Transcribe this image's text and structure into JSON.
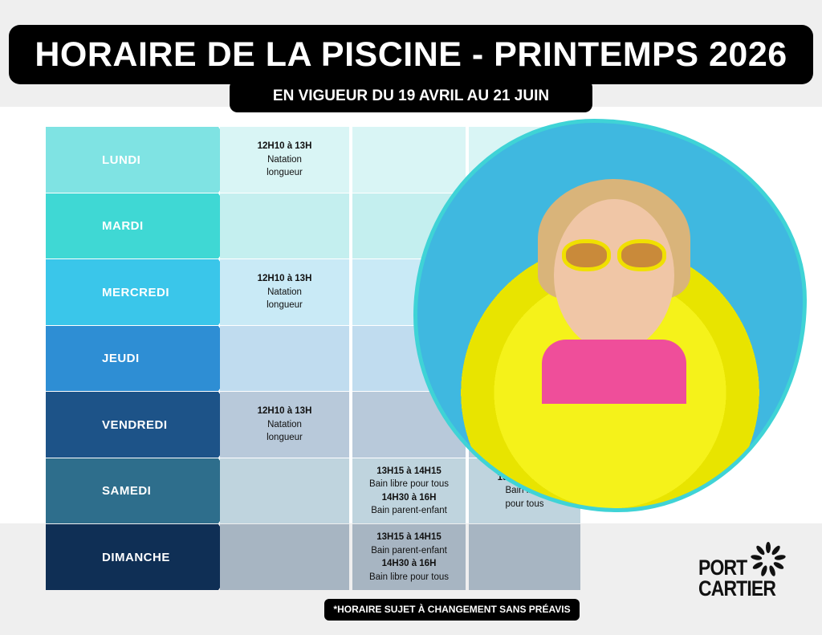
{
  "header": {
    "title": "HORAIRE DE LA PISCINE - PRINTEMPS 2026",
    "subtitle": "EN VIGUEUR DU 19 AVRIL AU 21 JUIN"
  },
  "schedule": [
    {
      "day": "LUNDI",
      "color": "#7fe3e3",
      "cell": "#d9f5f5",
      "c1": {
        "time": "12H10 à 13H",
        "desc": "Natation longueur"
      }
    },
    {
      "day": "MARDI",
      "color": "#3fd8d4",
      "cell": "#c4efef"
    },
    {
      "day": "MERCREDI",
      "color": "#3ac6ea",
      "cell": "#c9eaf6",
      "c1": {
        "time": "12H10 à 13H",
        "desc": "Natation longueur"
      }
    },
    {
      "day": "JEUDI",
      "color": "#2e8ed4",
      "cell": "#c0dcef"
    },
    {
      "day": "VENDREDI",
      "color": "#1d5388",
      "cell": "#b8c9da",
      "c1": {
        "time": "12H10 à 13H",
        "desc": "Natation longueur"
      }
    },
    {
      "day": "SAMEDI",
      "color": "#2e6e8c",
      "cell": "#bfd4de",
      "c2": {
        "time": "13H15 à 14H15",
        "desc": "Bain libre pour tous",
        "time2": "14H30 à 16H",
        "desc2": "Bain parent-enfant"
      },
      "c3": {
        "time": "19H00 à 20H",
        "desc": "Bain libre pour tous"
      }
    },
    {
      "day": "DIMANCHE",
      "color": "#0f2f55",
      "cell": "#a7b5c2",
      "c2": {
        "time": "13H15 à 14H15",
        "desc": "Bain parent-enfant",
        "time2": "14H30 à 16H",
        "desc2": "Bain libre pour tous"
      }
    }
  ],
  "footer": {
    "note": "*HORAIRE SUJET À CHANGEMENT SANS PRÉAVIS",
    "logo_line1": "PORT",
    "logo_line2": "CARTIER"
  },
  "accent": "#3fd3d6"
}
